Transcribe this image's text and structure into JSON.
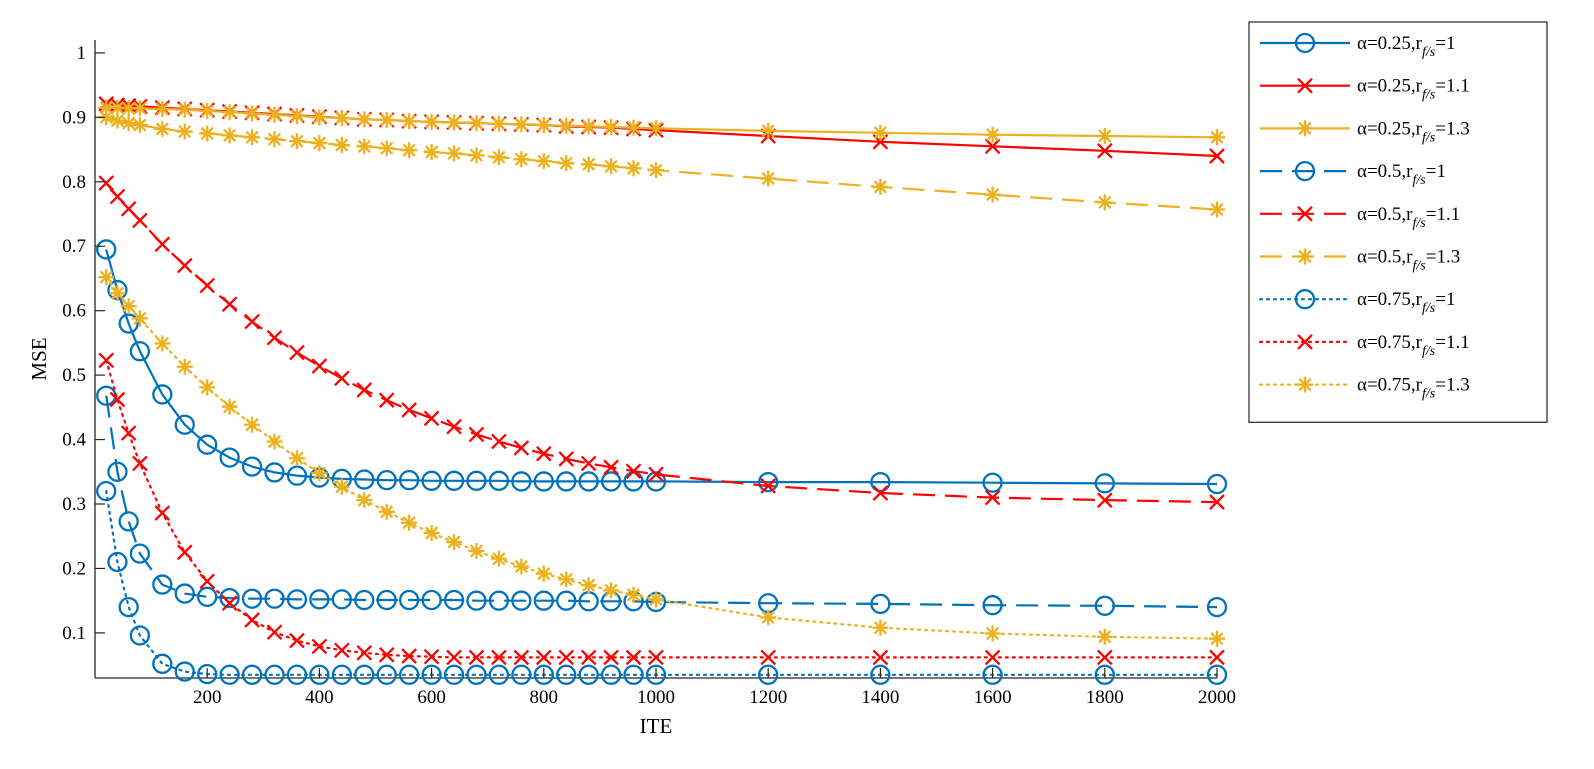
{
  "chart_data": {
    "type": "line",
    "title": "",
    "xlabel": "ITE",
    "ylabel": "MSE",
    "xlim": [
      0,
      2000
    ],
    "ylim": [
      0.03,
      1.02
    ],
    "grid": false,
    "legend_position": "outside-right",
    "x_ticks": [
      200,
      400,
      600,
      800,
      1000,
      1200,
      1400,
      1600,
      1800,
      2000
    ],
    "y_ticks": [
      0.1,
      0.2,
      0.3,
      0.4,
      0.5,
      0.6,
      0.7,
      0.8,
      0.9,
      1
    ],
    "x_tick_labels": [
      "200",
      "400",
      "600",
      "800",
      "1000",
      "1200",
      "1400",
      "1600",
      "1800",
      "2000"
    ],
    "y_tick_labels": [
      "0.1",
      "0.2",
      "0.3",
      "0.4",
      "0.5",
      "0.6",
      "0.7",
      "0.8",
      "0.9",
      "1"
    ],
    "x": [
      20,
      40,
      60,
      80,
      120,
      160,
      200,
      240,
      280,
      320,
      360,
      400,
      440,
      480,
      520,
      560,
      600,
      640,
      680,
      720,
      760,
      800,
      840,
      880,
      920,
      960,
      1000,
      1200,
      1400,
      1600,
      1800,
      2000
    ],
    "series": [
      {
        "name": "α=0.25, r_f/s=1",
        "legend_main": "α=0.25,r",
        "legend_sub": "f/s",
        "legend_tail": "=1",
        "color": "#0072BD",
        "line_style": "solid",
        "marker": "circle",
        "values": [
          0.695,
          0.632,
          0.58,
          0.537,
          0.47,
          0.423,
          0.392,
          0.372,
          0.358,
          0.349,
          0.344,
          0.341,
          0.339,
          0.338,
          0.337,
          0.337,
          0.336,
          0.336,
          0.336,
          0.336,
          0.335,
          0.335,
          0.335,
          0.335,
          0.335,
          0.335,
          0.335,
          0.334,
          0.334,
          0.333,
          0.332,
          0.331
        ]
      },
      {
        "name": "α=0.25, r_f/s=1.1",
        "legend_main": "α=0.25,r",
        "legend_sub": "f/s",
        "legend_tail": "=1.1",
        "color": "#FF0000",
        "line_style": "solid",
        "marker": "x",
        "values": [
          0.921,
          0.919,
          0.918,
          0.917,
          0.915,
          0.913,
          0.911,
          0.909,
          0.907,
          0.905,
          0.903,
          0.901,
          0.899,
          0.897,
          0.896,
          0.894,
          0.893,
          0.892,
          0.891,
          0.89,
          0.889,
          0.888,
          0.886,
          0.885,
          0.884,
          0.882,
          0.88,
          0.871,
          0.862,
          0.855,
          0.848,
          0.84
        ]
      },
      {
        "name": "α=0.25, r_f/s=1.3",
        "legend_main": "α=0.25,r",
        "legend_sub": "f/s",
        "legend_tail": "=1.3",
        "color": "#EDB120",
        "line_style": "solid",
        "marker": "asterisk",
        "values": [
          0.915,
          0.915,
          0.914,
          0.914,
          0.913,
          0.912,
          0.91,
          0.908,
          0.906,
          0.904,
          0.902,
          0.9,
          0.899,
          0.897,
          0.896,
          0.894,
          0.893,
          0.892,
          0.891,
          0.89,
          0.889,
          0.888,
          0.887,
          0.886,
          0.885,
          0.884,
          0.883,
          0.879,
          0.876,
          0.873,
          0.871,
          0.869
        ]
      },
      {
        "name": "α=0.5, r_f/s=1",
        "legend_main": "α=0.5,r",
        "legend_sub": "f/s",
        "legend_tail": "=1",
        "color": "#0072BD",
        "line_style": "dashed",
        "marker": "circle",
        "values": [
          0.468,
          0.35,
          0.273,
          0.223,
          0.175,
          0.161,
          0.156,
          0.154,
          0.153,
          0.153,
          0.152,
          0.152,
          0.152,
          0.151,
          0.151,
          0.151,
          0.151,
          0.151,
          0.15,
          0.15,
          0.15,
          0.15,
          0.15,
          0.149,
          0.149,
          0.149,
          0.148,
          0.146,
          0.145,
          0.143,
          0.142,
          0.14
        ]
      },
      {
        "name": "α=0.5, r_f/s=1.1",
        "legend_main": "α=0.5,r",
        "legend_sub": "f/s",
        "legend_tail": "=1.1",
        "color": "#FF0000",
        "line_style": "dashed",
        "marker": "x",
        "values": [
          0.798,
          0.777,
          0.758,
          0.74,
          0.703,
          0.67,
          0.639,
          0.61,
          0.583,
          0.558,
          0.535,
          0.514,
          0.495,
          0.477,
          0.461,
          0.446,
          0.433,
          0.42,
          0.408,
          0.397,
          0.387,
          0.378,
          0.37,
          0.363,
          0.357,
          0.351,
          0.346,
          0.328,
          0.317,
          0.31,
          0.306,
          0.303
        ]
      },
      {
        "name": "α=0.5, r_f/s=1.3",
        "legend_main": "α=0.5,r",
        "legend_sub": "f/s",
        "legend_tail": "=1.3",
        "color": "#EDB120",
        "line_style": "dashed",
        "marker": "asterisk",
        "values": [
          0.9,
          0.895,
          0.891,
          0.888,
          0.882,
          0.878,
          0.875,
          0.872,
          0.869,
          0.866,
          0.863,
          0.86,
          0.857,
          0.855,
          0.852,
          0.849,
          0.846,
          0.844,
          0.841,
          0.838,
          0.835,
          0.832,
          0.829,
          0.827,
          0.824,
          0.821,
          0.818,
          0.805,
          0.792,
          0.78,
          0.768,
          0.757
        ]
      },
      {
        "name": "α=0.75, r_f/s=1",
        "legend_main": "α=0.75,r",
        "legend_sub": "f/s",
        "legend_tail": "=1",
        "color": "#0072BD",
        "line_style": "dotted",
        "marker": "circle",
        "values": [
          0.32,
          0.21,
          0.14,
          0.096,
          0.052,
          0.04,
          0.036,
          0.035,
          0.035,
          0.035,
          0.035,
          0.035,
          0.035,
          0.035,
          0.035,
          0.035,
          0.035,
          0.035,
          0.035,
          0.035,
          0.035,
          0.035,
          0.035,
          0.035,
          0.035,
          0.035,
          0.035,
          0.035,
          0.035,
          0.035,
          0.035,
          0.035
        ]
      },
      {
        "name": "α=0.75, r_f/s=1.1",
        "legend_main": "α=0.75,r",
        "legend_sub": "f/s",
        "legend_tail": "=1.1",
        "color": "#FF0000",
        "line_style": "dotted",
        "marker": "x",
        "values": [
          0.523,
          0.462,
          0.41,
          0.363,
          0.286,
          0.225,
          0.18,
          0.146,
          0.12,
          0.101,
          0.088,
          0.079,
          0.073,
          0.069,
          0.066,
          0.064,
          0.063,
          0.062,
          0.062,
          0.062,
          0.062,
          0.062,
          0.062,
          0.062,
          0.062,
          0.062,
          0.062,
          0.062,
          0.062,
          0.062,
          0.062,
          0.062
        ]
      },
      {
        "name": "α=0.75, r_f/s=1.3",
        "legend_main": "α=0.75,r",
        "legend_sub": "f/s",
        "legend_tail": "=1.3",
        "color": "#EDB120",
        "line_style": "dotted",
        "marker": "asterisk",
        "values": [
          0.652,
          0.627,
          0.607,
          0.588,
          0.549,
          0.513,
          0.481,
          0.451,
          0.423,
          0.397,
          0.371,
          0.348,
          0.327,
          0.306,
          0.288,
          0.271,
          0.255,
          0.241,
          0.227,
          0.215,
          0.203,
          0.192,
          0.183,
          0.174,
          0.166,
          0.159,
          0.152,
          0.124,
          0.108,
          0.099,
          0.094,
          0.091
        ]
      }
    ]
  }
}
